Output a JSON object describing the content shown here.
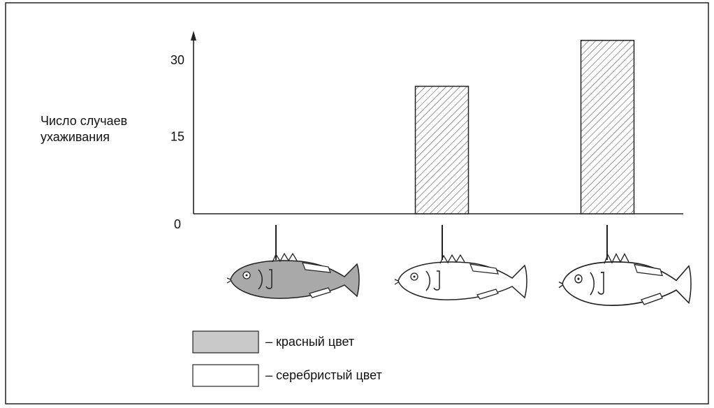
{
  "chart_data": {
    "type": "bar",
    "ylabel": "Число случаев ухаживания",
    "categories": [
      null,
      null,
      null
    ],
    "values": [
      0,
      25,
      34
    ],
    "ylim": [
      0,
      35
    ],
    "yticks": [
      0,
      15,
      30
    ],
    "grid": false,
    "bar_fill": "hatched",
    "legend": [
      {
        "label": "– красный цвет",
        "color": "#c8c8c8"
      },
      {
        "label": "– серебристый цвет",
        "color": "#ffffff"
      }
    ]
  }
}
